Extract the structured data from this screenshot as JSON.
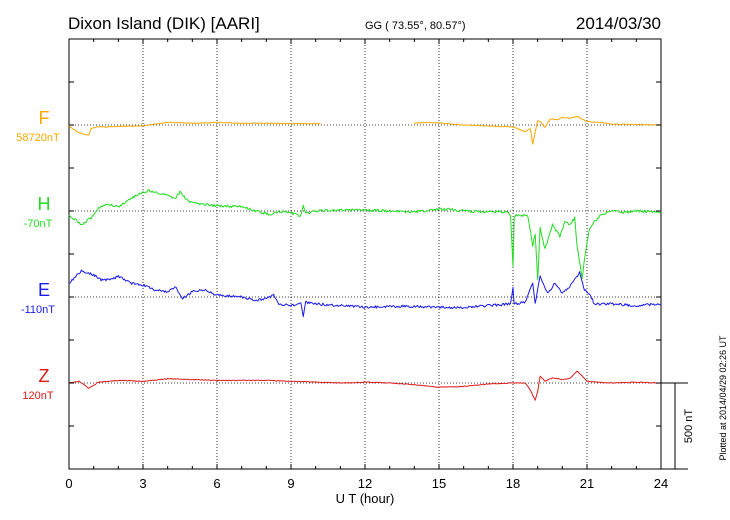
{
  "header": {
    "station": "Dixon Island (DIK)  [AARI]",
    "coords": "GG ( 73.55°,  80.57°)",
    "date": "2014/03/30"
  },
  "plotted_note": "Plotted at 2014/04/29 02:26 UT",
  "chart_data": {
    "type": "line",
    "xlabel": "U T (hour)",
    "xlim": [
      0,
      24
    ],
    "xticks": [
      "0",
      "3",
      "6",
      "9",
      "12",
      "15",
      "18",
      "21",
      "24"
    ],
    "scale_bar": {
      "label": "500 nT",
      "value_nT": 500
    },
    "series": [
      {
        "name": "F",
        "baseline_label": "58720nT",
        "color": "#f5a800",
        "gaps": [
          [
            10.2,
            14.0
          ]
        ],
        "points": [
          [
            0,
            -5
          ],
          [
            0.4,
            -45
          ],
          [
            0.8,
            -60
          ],
          [
            0.9,
            -20
          ],
          [
            1.2,
            -10
          ],
          [
            1.5,
            -12
          ],
          [
            2.0,
            -8
          ],
          [
            3.0,
            -5
          ],
          [
            4.0,
            15
          ],
          [
            5.0,
            10
          ],
          [
            6.0,
            15
          ],
          [
            7.0,
            10
          ],
          [
            8.0,
            10
          ],
          [
            9.0,
            8
          ],
          [
            10.0,
            8
          ],
          [
            10.2,
            8
          ],
          [
            14.0,
            10
          ],
          [
            14.5,
            15
          ],
          [
            15.0,
            12
          ],
          [
            15.5,
            5
          ],
          [
            16.0,
            0
          ],
          [
            17.0,
            -5
          ],
          [
            17.5,
            -10
          ],
          [
            18.0,
            -10
          ],
          [
            18.5,
            -40
          ],
          [
            18.7,
            -20
          ],
          [
            18.8,
            -110
          ],
          [
            18.9,
            -40
          ],
          [
            19.0,
            25
          ],
          [
            19.1,
            20
          ],
          [
            19.3,
            -15
          ],
          [
            19.5,
            35
          ],
          [
            19.8,
            30
          ],
          [
            20.0,
            45
          ],
          [
            20.3,
            40
          ],
          [
            20.6,
            50
          ],
          [
            20.8,
            35
          ],
          [
            21.0,
            20
          ],
          [
            21.5,
            15
          ],
          [
            22.0,
            5
          ],
          [
            23.0,
            3
          ],
          [
            24.0,
            0
          ]
        ]
      },
      {
        "name": "H",
        "baseline_label": "-70nT",
        "color": "#22dd22",
        "gaps": [],
        "points": [
          [
            0,
            -20
          ],
          [
            0.5,
            -80
          ],
          [
            0.9,
            -40
          ],
          [
            1.2,
            20
          ],
          [
            1.6,
            40
          ],
          [
            2.0,
            25
          ],
          [
            2.6,
            80
          ],
          [
            3.2,
            120
          ],
          [
            3.8,
            100
          ],
          [
            4.3,
            70
          ],
          [
            4.5,
            110
          ],
          [
            4.8,
            60
          ],
          [
            5.3,
            40
          ],
          [
            6.0,
            30
          ],
          [
            7.0,
            25
          ],
          [
            7.8,
            -10
          ],
          [
            8.2,
            -20
          ],
          [
            8.5,
            0
          ],
          [
            9.0,
            -10
          ],
          [
            9.4,
            -30
          ],
          [
            9.5,
            30
          ],
          [
            9.6,
            -15
          ],
          [
            10.0,
            0
          ],
          [
            11.0,
            5
          ],
          [
            12.0,
            5
          ],
          [
            13.0,
            0
          ],
          [
            14.0,
            -5
          ],
          [
            15.0,
            10
          ],
          [
            15.5,
            10
          ],
          [
            16.0,
            0
          ],
          [
            17.0,
            -5
          ],
          [
            17.8,
            -5
          ],
          [
            17.9,
            -30
          ],
          [
            18.0,
            -330
          ],
          [
            18.05,
            -30
          ],
          [
            18.2,
            -20
          ],
          [
            18.6,
            -30
          ],
          [
            18.8,
            -200
          ],
          [
            18.9,
            -130
          ],
          [
            19.0,
            -400
          ],
          [
            19.1,
            -100
          ],
          [
            19.3,
            -220
          ],
          [
            19.6,
            -80
          ],
          [
            19.9,
            -150
          ],
          [
            20.1,
            -60
          ],
          [
            20.3,
            -80
          ],
          [
            20.5,
            -40
          ],
          [
            20.6,
            -200
          ],
          [
            20.8,
            -390
          ],
          [
            20.95,
            -230
          ],
          [
            21.1,
            -100
          ],
          [
            21.3,
            -60
          ],
          [
            21.6,
            -20
          ],
          [
            22.0,
            0
          ],
          [
            22.5,
            -10
          ],
          [
            23.0,
            0
          ],
          [
            24.0,
            -5
          ]
        ]
      },
      {
        "name": "E",
        "baseline_label": "-110nT",
        "color": "#1a1aee",
        "gaps": [],
        "points": [
          [
            0,
            80
          ],
          [
            0.5,
            150
          ],
          [
            1.0,
            130
          ],
          [
            1.3,
            100
          ],
          [
            1.7,
            100
          ],
          [
            2.0,
            120
          ],
          [
            2.5,
            80
          ],
          [
            3.0,
            70
          ],
          [
            3.5,
            40
          ],
          [
            4.0,
            30
          ],
          [
            4.3,
            60
          ],
          [
            4.6,
            -10
          ],
          [
            5.0,
            30
          ],
          [
            5.5,
            40
          ],
          [
            6.0,
            10
          ],
          [
            7.0,
            0
          ],
          [
            7.5,
            -20
          ],
          [
            8.0,
            -10
          ],
          [
            8.3,
            10
          ],
          [
            8.5,
            -40
          ],
          [
            9.0,
            -50
          ],
          [
            9.4,
            -40
          ],
          [
            9.5,
            -110
          ],
          [
            9.6,
            -30
          ],
          [
            10.0,
            -40
          ],
          [
            11.0,
            -50
          ],
          [
            12.0,
            -60
          ],
          [
            13.0,
            -55
          ],
          [
            14.0,
            -55
          ],
          [
            15.0,
            -60
          ],
          [
            16.0,
            -60
          ],
          [
            17.0,
            -50
          ],
          [
            17.9,
            -40
          ],
          [
            18.0,
            50
          ],
          [
            18.05,
            -40
          ],
          [
            18.5,
            -30
          ],
          [
            18.8,
            80
          ],
          [
            18.9,
            -40
          ],
          [
            19.1,
            120
          ],
          [
            19.4,
            20
          ],
          [
            19.7,
            80
          ],
          [
            20.0,
            20
          ],
          [
            20.3,
            60
          ],
          [
            20.5,
            100
          ],
          [
            20.7,
            140
          ],
          [
            20.9,
            40
          ],
          [
            21.1,
            20
          ],
          [
            21.3,
            -40
          ],
          [
            22.0,
            -40
          ],
          [
            23.0,
            -50
          ],
          [
            24.0,
            -40
          ]
        ]
      },
      {
        "name": "Z",
        "baseline_label": "120nT",
        "color": "#dd1a1a",
        "gaps": [],
        "points": [
          [
            0,
            0
          ],
          [
            0.4,
            10
          ],
          [
            0.8,
            -30
          ],
          [
            1.2,
            5
          ],
          [
            2.0,
            15
          ],
          [
            3.0,
            10
          ],
          [
            4.0,
            25
          ],
          [
            5.0,
            20
          ],
          [
            6.0,
            15
          ],
          [
            7.0,
            15
          ],
          [
            8.0,
            15
          ],
          [
            9.0,
            10
          ],
          [
            10.0,
            5
          ],
          [
            11.0,
            0
          ],
          [
            12.0,
            5
          ],
          [
            13.0,
            0
          ],
          [
            14.0,
            -10
          ],
          [
            15.0,
            -25
          ],
          [
            16.0,
            -20
          ],
          [
            17.0,
            -5
          ],
          [
            18.0,
            0
          ],
          [
            18.5,
            0
          ],
          [
            18.7,
            -40
          ],
          [
            18.9,
            -100
          ],
          [
            19.0,
            -50
          ],
          [
            19.1,
            40
          ],
          [
            19.3,
            10
          ],
          [
            19.6,
            30
          ],
          [
            20.0,
            20
          ],
          [
            20.3,
            25
          ],
          [
            20.6,
            70
          ],
          [
            20.8,
            40
          ],
          [
            21.0,
            10
          ],
          [
            21.5,
            5
          ],
          [
            22.0,
            0
          ],
          [
            23.0,
            5
          ],
          [
            24.0,
            0
          ]
        ]
      }
    ]
  }
}
